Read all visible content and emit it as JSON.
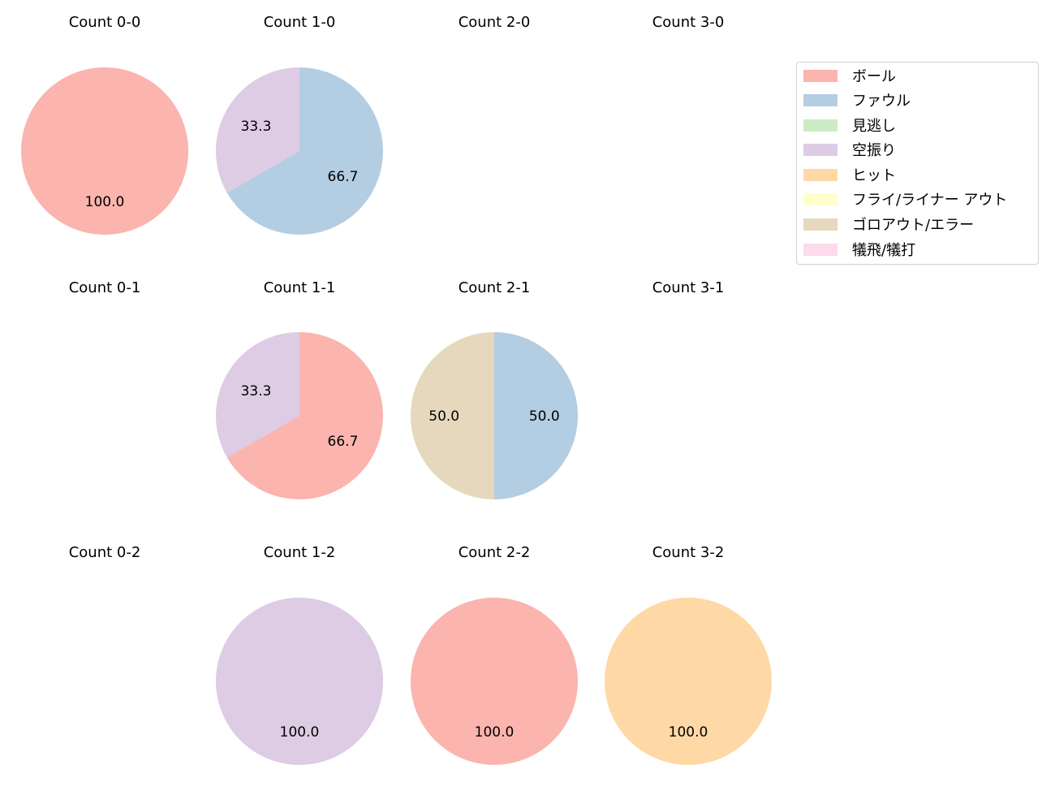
{
  "chart_data": {
    "type": "pie",
    "layout": {
      "rows": 3,
      "cols": 4,
      "legend_position": "upper right"
    },
    "categories": [
      "ボール",
      "ファウル",
      "見逃し",
      "空振り",
      "ヒット",
      "フライ/ライナー アウト",
      "ゴロアウト/エラー",
      "犠飛/犠打"
    ],
    "colors": [
      "#fbb4ae",
      "#b3cde3",
      "#ccebc5",
      "#decbe4",
      "#fed9a6",
      "#ffffcc",
      "#e5d8bd",
      "#fddaec"
    ],
    "subplots": [
      {
        "title": "Count 0-0",
        "row": 0,
        "col": 0,
        "slices": [
          {
            "label": "ボール",
            "value": 100.0
          }
        ]
      },
      {
        "title": "Count 1-0",
        "row": 0,
        "col": 1,
        "slices": [
          {
            "label": "ファウル",
            "value": 66.7
          },
          {
            "label": "空振り",
            "value": 33.3
          }
        ]
      },
      {
        "title": "Count 2-0",
        "row": 0,
        "col": 2,
        "slices": []
      },
      {
        "title": "Count 3-0",
        "row": 0,
        "col": 3,
        "slices": []
      },
      {
        "title": "Count 0-1",
        "row": 1,
        "col": 0,
        "slices": []
      },
      {
        "title": "Count 1-1",
        "row": 1,
        "col": 1,
        "slices": [
          {
            "label": "ボール",
            "value": 66.7
          },
          {
            "label": "空振り",
            "value": 33.3
          }
        ]
      },
      {
        "title": "Count 2-1",
        "row": 1,
        "col": 2,
        "slices": [
          {
            "label": "ファウル",
            "value": 50.0
          },
          {
            "label": "ゴロアウト/エラー",
            "value": 50.0
          }
        ]
      },
      {
        "title": "Count 3-1",
        "row": 1,
        "col": 3,
        "slices": []
      },
      {
        "title": "Count 0-2",
        "row": 2,
        "col": 0,
        "slices": []
      },
      {
        "title": "Count 1-2",
        "row": 2,
        "col": 1,
        "slices": [
          {
            "label": "空振り",
            "value": 100.0
          }
        ]
      },
      {
        "title": "Count 2-2",
        "row": 2,
        "col": 2,
        "slices": [
          {
            "label": "ボール",
            "value": 100.0
          }
        ]
      },
      {
        "title": "Count 3-2",
        "row": 2,
        "col": 3,
        "slices": [
          {
            "label": "ヒット",
            "value": 100.0
          }
        ]
      }
    ]
  },
  "legend": {
    "items": [
      {
        "label": "ボール",
        "color": "#fbb4ae"
      },
      {
        "label": "ファウル",
        "color": "#b3cde3"
      },
      {
        "label": "見逃し",
        "color": "#ccebc5"
      },
      {
        "label": "空振り",
        "color": "#decbe4"
      },
      {
        "label": "ヒット",
        "color": "#fed9a6"
      },
      {
        "label": "フライ/ライナー アウト",
        "color": "#ffffcc"
      },
      {
        "label": "ゴロアウト/エラー",
        "color": "#e5d8bd"
      },
      {
        "label": "犠飛/犠打",
        "color": "#fddaec"
      }
    ]
  },
  "titles": [
    "Count 0-0",
    "Count 1-0",
    "Count 2-0",
    "Count 3-0",
    "Count 0-1",
    "Count 1-1",
    "Count 2-1",
    "Count 3-1",
    "Count 0-2",
    "Count 1-2",
    "Count 2-2",
    "Count 3-2"
  ]
}
